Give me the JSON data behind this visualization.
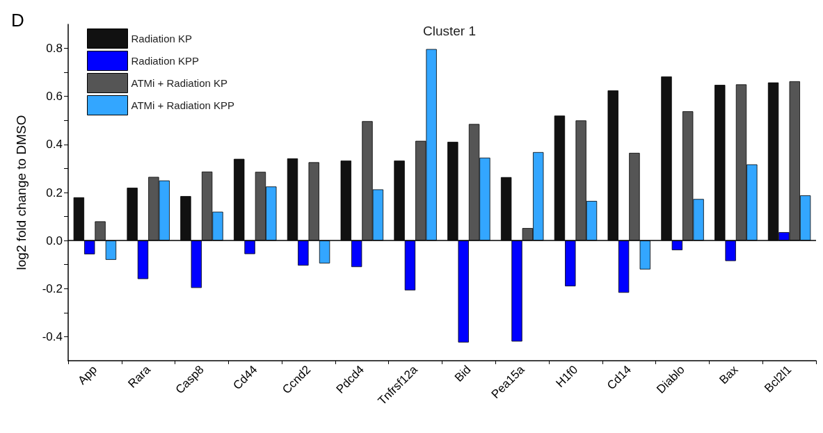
{
  "chart_data": {
    "type": "bar",
    "title": "Cluster 1",
    "ylabel": "log2 fold change to DMSO",
    "annotations": [
      "D"
    ],
    "categories": [
      "App",
      "Rara",
      "Casp8",
      "Cd44",
      "Ccnd2",
      "Pdcd4",
      "Tnfrsf12a",
      "Bid",
      "Pea15a",
      "H1f0",
      "Cd14",
      "Diablo",
      "Bax",
      "Bcl2l1"
    ],
    "series": [
      {
        "name": "Radiation KP",
        "color": "#111111",
        "values": [
          0.18,
          0.22,
          0.185,
          0.34,
          0.342,
          0.333,
          0.333,
          0.411,
          0.264,
          0.52,
          0.625,
          0.683,
          0.648,
          0.658
        ]
      },
      {
        "name": "Radiation KPP",
        "color": "#0000ff",
        "values": [
          -0.057,
          -0.16,
          -0.197,
          -0.056,
          -0.104,
          -0.11,
          -0.207,
          -0.424,
          -0.42,
          -0.19,
          -0.217,
          -0.04,
          -0.085,
          0.035
        ]
      },
      {
        "name": "ATMi + Radiation KP",
        "color": "#555555",
        "values": [
          0.08,
          0.265,
          0.287,
          0.286,
          0.326,
          0.497,
          0.415,
          0.485,
          0.052,
          0.5,
          0.365,
          0.538,
          0.65,
          0.663
        ]
      },
      {
        "name": "ATMi + Radiation KPP",
        "color": "#33a6ff",
        "values": [
          -0.08,
          0.25,
          0.12,
          0.225,
          -0.095,
          0.213,
          0.797,
          0.345,
          0.368,
          0.165,
          -0.12,
          0.173,
          0.317,
          0.188
        ]
      }
    ],
    "ylim": [
      -0.5,
      0.9
    ],
    "yticks": [
      {
        "value": -0.4,
        "label": "-0.4"
      },
      {
        "value": -0.3,
        "label": null
      },
      {
        "value": -0.2,
        "label": "-0.2"
      },
      {
        "value": -0.1,
        "label": null
      },
      {
        "value": 0,
        "label": "0.0"
      },
      {
        "value": 0.1,
        "label": null
      },
      {
        "value": 0.2,
        "label": "0.2"
      },
      {
        "value": 0.3,
        "label": null
      },
      {
        "value": 0.4,
        "label": "0.4"
      },
      {
        "value": 0.5,
        "label": null
      },
      {
        "value": 0.6,
        "label": "0.6"
      },
      {
        "value": 0.7,
        "label": null
      },
      {
        "value": 0.8,
        "label": "0.8"
      }
    ],
    "ref_lines": [
      {
        "axis": "y",
        "value": 0,
        "color": "#000000"
      }
    ],
    "legend": "top left"
  }
}
